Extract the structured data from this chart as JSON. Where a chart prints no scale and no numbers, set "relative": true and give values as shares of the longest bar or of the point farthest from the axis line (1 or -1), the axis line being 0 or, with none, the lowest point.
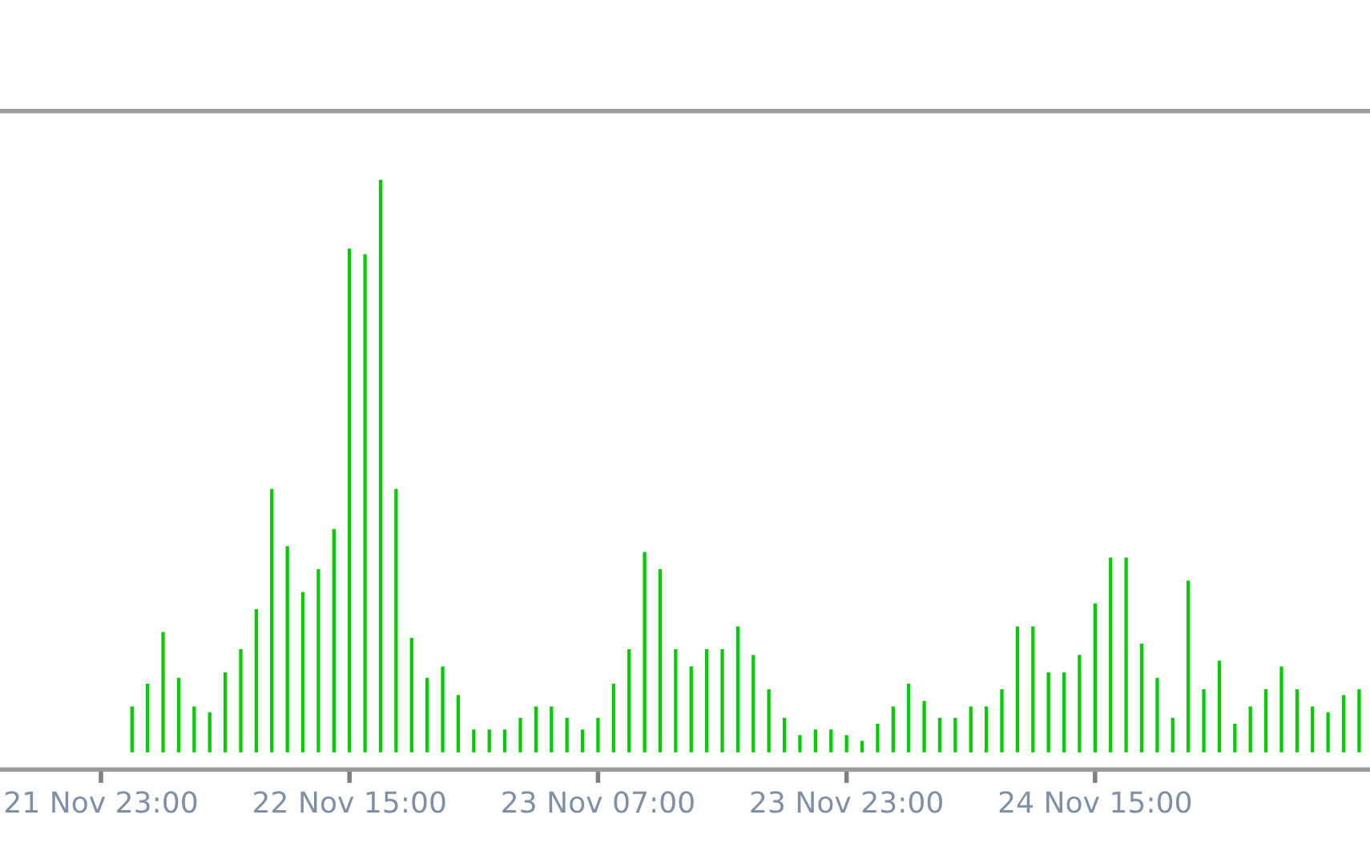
{
  "chart_data": {
    "type": "bar",
    "relative": true,
    "categories": [
      "21 Nov 23:00",
      null,
      null,
      null,
      null,
      null,
      null,
      null,
      null,
      null,
      null,
      null,
      null,
      null,
      null,
      null,
      "22 Nov 15:00",
      null,
      null,
      null,
      null,
      null,
      null,
      null,
      null,
      null,
      null,
      null,
      null,
      null,
      null,
      null,
      "23 Nov 07:00",
      null,
      null,
      null,
      null,
      null,
      null,
      null,
      null,
      null,
      null,
      null,
      null,
      null,
      null,
      null,
      "23 Nov 23:00",
      null,
      null,
      null,
      null,
      null,
      null,
      null,
      null,
      null,
      null,
      null,
      null,
      null,
      null,
      null,
      "24 Nov 15:00",
      null,
      null,
      null,
      null,
      null,
      null,
      null,
      null,
      null,
      null,
      null,
      null,
      null,
      null,
      null,
      null,
      null
    ],
    "series": [
      {
        "color": "#00cc00",
        "values": [
          null,
          null,
          0.08,
          0.12,
          0.21,
          0.13,
          0.08,
          0.07,
          0.14,
          0.18,
          0.25,
          0.46,
          0.36,
          0.28,
          0.32,
          0.39,
          0.88,
          0.87,
          1,
          0.46,
          0.2,
          0.13,
          0.15,
          0.1,
          0.04,
          0.04,
          0.04,
          0.06,
          0.08,
          0.08,
          0.06,
          0.04,
          0.06,
          0.12,
          0.18,
          0.35,
          0.32,
          0.18,
          0.15,
          0.18,
          0.18,
          0.22,
          0.17,
          0.11,
          0.06,
          0.03,
          0.04,
          0.04,
          0.03,
          0.02,
          0.05,
          0.08,
          0.12,
          0.09,
          0.06,
          0.06,
          0.08,
          0.08,
          0.11,
          0.22,
          0.22,
          0.14,
          0.14,
          0.17,
          0.26,
          0.34,
          0.34,
          0.19,
          0.13,
          0.06,
          0.3,
          0.11,
          0.16,
          0.05,
          0.08,
          0.11,
          0.15,
          0.11,
          0.08,
          0.07,
          0.1,
          0.11
        ]
      }
    ],
    "tick_labels": "x"
  }
}
